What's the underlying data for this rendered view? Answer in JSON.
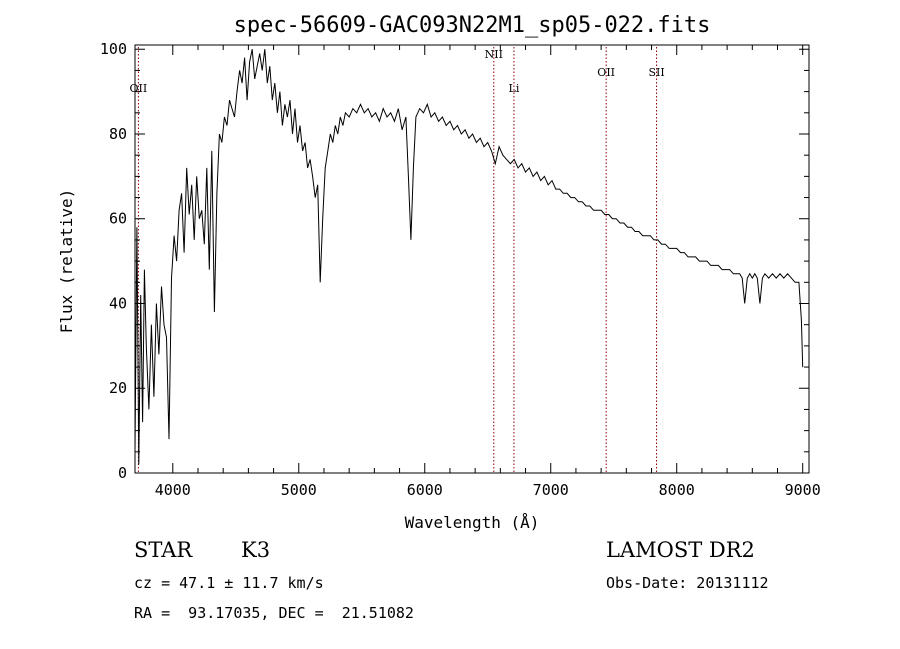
{
  "chart_data": {
    "type": "line",
    "title": "spec-56609-GAC093N22M1_sp05-022.fits",
    "xlabel": "Wavelength (Å)",
    "ylabel": "Flux (relative)",
    "xlim": [
      3700,
      9050
    ],
    "ylim": [
      0,
      101
    ],
    "xticks": [
      4000,
      5000,
      6000,
      7000,
      8000,
      9000
    ],
    "yticks": [
      0,
      20,
      40,
      60,
      80,
      100
    ],
    "line_color": "#000000",
    "marker_color": "#8b0000",
    "spectral_lines": [
      {
        "name": "OII",
        "wavelength": 3727
      },
      {
        "name": "NII",
        "wavelength": 6548
      },
      {
        "name": "Li",
        "wavelength": 6708
      },
      {
        "name": "OII",
        "wavelength": 7440
      },
      {
        "name": "SII",
        "wavelength": 7840
      }
    ],
    "series": [
      {
        "values": [
          [
            3700,
            5
          ],
          [
            3715,
            58
          ],
          [
            3730,
            2
          ],
          [
            3745,
            42
          ],
          [
            3760,
            12
          ],
          [
            3775,
            48
          ],
          [
            3790,
            30
          ],
          [
            3810,
            15
          ],
          [
            3830,
            35
          ],
          [
            3850,
            18
          ],
          [
            3870,
            40
          ],
          [
            3890,
            28
          ],
          [
            3910,
            44
          ],
          [
            3930,
            35
          ],
          [
            3950,
            32
          ],
          [
            3970,
            8
          ],
          [
            3990,
            46
          ],
          [
            4010,
            56
          ],
          [
            4030,
            50
          ],
          [
            4050,
            62
          ],
          [
            4070,
            66
          ],
          [
            4090,
            52
          ],
          [
            4110,
            72
          ],
          [
            4130,
            61
          ],
          [
            4150,
            68
          ],
          [
            4170,
            55
          ],
          [
            4190,
            70
          ],
          [
            4210,
            60
          ],
          [
            4230,
            62
          ],
          [
            4250,
            54
          ],
          [
            4270,
            72
          ],
          [
            4290,
            48
          ],
          [
            4310,
            76
          ],
          [
            4330,
            38
          ],
          [
            4350,
            66
          ],
          [
            4370,
            80
          ],
          [
            4390,
            78
          ],
          [
            4410,
            84
          ],
          [
            4430,
            82
          ],
          [
            4450,
            88
          ],
          [
            4470,
            86
          ],
          [
            4490,
            84
          ],
          [
            4510,
            90
          ],
          [
            4530,
            95
          ],
          [
            4550,
            92
          ],
          [
            4570,
            98
          ],
          [
            4590,
            88
          ],
          [
            4610,
            97
          ],
          [
            4630,
            100
          ],
          [
            4650,
            93
          ],
          [
            4670,
            96
          ],
          [
            4690,
            99
          ],
          [
            4710,
            95
          ],
          [
            4730,
            100
          ],
          [
            4750,
            92
          ],
          [
            4770,
            96
          ],
          [
            4790,
            88
          ],
          [
            4810,
            92
          ],
          [
            4830,
            85
          ],
          [
            4850,
            90
          ],
          [
            4870,
            82
          ],
          [
            4890,
            87
          ],
          [
            4910,
            84
          ],
          [
            4930,
            88
          ],
          [
            4950,
            80
          ],
          [
            4970,
            86
          ],
          [
            4990,
            78
          ],
          [
            5010,
            82
          ],
          [
            5030,
            76
          ],
          [
            5050,
            78
          ],
          [
            5070,
            72
          ],
          [
            5090,
            74
          ],
          [
            5110,
            70
          ],
          [
            5130,
            65
          ],
          [
            5150,
            68
          ],
          [
            5170,
            45
          ],
          [
            5190,
            60
          ],
          [
            5210,
            72
          ],
          [
            5230,
            76
          ],
          [
            5250,
            80
          ],
          [
            5270,
            78
          ],
          [
            5290,
            82
          ],
          [
            5310,
            80
          ],
          [
            5330,
            84
          ],
          [
            5350,
            82
          ],
          [
            5370,
            85
          ],
          [
            5400,
            84
          ],
          [
            5430,
            86
          ],
          [
            5460,
            85
          ],
          [
            5490,
            87
          ],
          [
            5520,
            85
          ],
          [
            5550,
            86
          ],
          [
            5580,
            84
          ],
          [
            5610,
            85
          ],
          [
            5640,
            83
          ],
          [
            5670,
            86
          ],
          [
            5700,
            84
          ],
          [
            5730,
            85
          ],
          [
            5760,
            83
          ],
          [
            5790,
            86
          ],
          [
            5820,
            81
          ],
          [
            5850,
            84
          ],
          [
            5870,
            70
          ],
          [
            5890,
            55
          ],
          [
            5910,
            72
          ],
          [
            5930,
            84
          ],
          [
            5960,
            86
          ],
          [
            5990,
            85
          ],
          [
            6020,
            87
          ],
          [
            6050,
            84
          ],
          [
            6080,
            85
          ],
          [
            6110,
            83
          ],
          [
            6140,
            84
          ],
          [
            6170,
            82
          ],
          [
            6200,
            83
          ],
          [
            6230,
            81
          ],
          [
            6260,
            82
          ],
          [
            6290,
            80
          ],
          [
            6320,
            81
          ],
          [
            6350,
            79
          ],
          [
            6380,
            80
          ],
          [
            6410,
            78
          ],
          [
            6440,
            79
          ],
          [
            6470,
            77
          ],
          [
            6500,
            78
          ],
          [
            6530,
            76
          ],
          [
            6560,
            73
          ],
          [
            6590,
            77
          ],
          [
            6620,
            75
          ],
          [
            6650,
            74
          ],
          [
            6680,
            73
          ],
          [
            6710,
            74
          ],
          [
            6740,
            72
          ],
          [
            6770,
            73
          ],
          [
            6800,
            71
          ],
          [
            6830,
            72
          ],
          [
            6860,
            70
          ],
          [
            6890,
            71
          ],
          [
            6920,
            69
          ],
          [
            6950,
            70
          ],
          [
            6980,
            68
          ],
          [
            7010,
            69
          ],
          [
            7040,
            67
          ],
          [
            7070,
            67
          ],
          [
            7100,
            66
          ],
          [
            7130,
            66
          ],
          [
            7160,
            65
          ],
          [
            7190,
            65
          ],
          [
            7220,
            64
          ],
          [
            7250,
            64
          ],
          [
            7280,
            63
          ],
          [
            7310,
            63
          ],
          [
            7340,
            62
          ],
          [
            7370,
            62
          ],
          [
            7400,
            62
          ],
          [
            7430,
            61
          ],
          [
            7460,
            61
          ],
          [
            7490,
            60
          ],
          [
            7520,
            60
          ],
          [
            7550,
            59
          ],
          [
            7580,
            59
          ],
          [
            7610,
            58
          ],
          [
            7640,
            58
          ],
          [
            7670,
            57
          ],
          [
            7700,
            57
          ],
          [
            7730,
            56
          ],
          [
            7760,
            56
          ],
          [
            7790,
            56
          ],
          [
            7820,
            55
          ],
          [
            7850,
            55
          ],
          [
            7880,
            54
          ],
          [
            7910,
            54
          ],
          [
            7940,
            53
          ],
          [
            7970,
            53
          ],
          [
            8000,
            53
          ],
          [
            8030,
            52
          ],
          [
            8060,
            52
          ],
          [
            8090,
            51
          ],
          [
            8120,
            51
          ],
          [
            8150,
            51
          ],
          [
            8180,
            50
          ],
          [
            8210,
            50
          ],
          [
            8240,
            50
          ],
          [
            8270,
            49
          ],
          [
            8300,
            49
          ],
          [
            8330,
            49
          ],
          [
            8360,
            48
          ],
          [
            8390,
            48
          ],
          [
            8420,
            48
          ],
          [
            8450,
            47
          ],
          [
            8480,
            47
          ],
          [
            8500,
            47
          ],
          [
            8520,
            46
          ],
          [
            8540,
            40
          ],
          [
            8560,
            46
          ],
          [
            8580,
            47
          ],
          [
            8600,
            46
          ],
          [
            8620,
            47
          ],
          [
            8640,
            46
          ],
          [
            8660,
            40
          ],
          [
            8680,
            46
          ],
          [
            8700,
            47
          ],
          [
            8730,
            46
          ],
          [
            8760,
            47
          ],
          [
            8790,
            46
          ],
          [
            8820,
            47
          ],
          [
            8850,
            46
          ],
          [
            8880,
            47
          ],
          [
            8910,
            46
          ],
          [
            8940,
            45
          ],
          [
            8970,
            45
          ],
          [
            8990,
            36
          ],
          [
            9000,
            25
          ]
        ]
      }
    ]
  },
  "info": {
    "object_class": "STAR",
    "subclass": "K3",
    "survey": "LAMOST DR2",
    "cz": "cz = 47.1 ± 11.7 km/s",
    "obs_date": "Obs-Date: 20131112",
    "coords": "RA =  93.17035, DEC =  21.51082"
  }
}
